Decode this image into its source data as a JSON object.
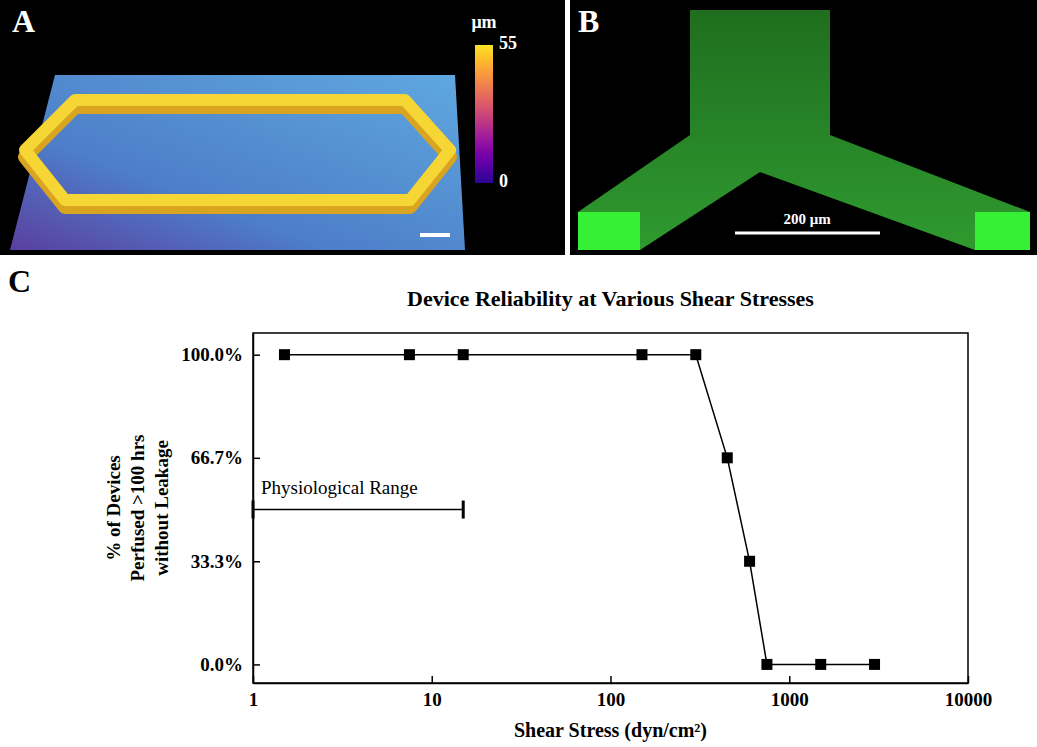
{
  "figure": {
    "panel_labels": [
      "A",
      "B",
      "C"
    ],
    "panel_a": {
      "colorbar": {
        "label": "μm",
        "range": [
          0,
          55
        ],
        "ticks": [
          0,
          55
        ]
      }
    },
    "panel_b": {
      "scale_bar_label": "200 μm"
    }
  },
  "chart_data": {
    "type": "line",
    "title": "Device Reliability at Various Shear Stresses",
    "x_label": "Shear Stress (dyn/cm²)",
    "y_label": "% of Devices Perfused >100 hrs without Leakage",
    "x": [
      1.5,
      7.5,
      15,
      150,
      300,
      450,
      600,
      750,
      1500,
      3000
    ],
    "values": [
      100,
      100,
      100,
      100,
      100,
      66.7,
      33.3,
      0,
      0,
      0
    ],
    "color": "#000000",
    "marker": "square",
    "line_style": "solid",
    "log": "x",
    "grid": false,
    "xlim": [
      1,
      10000
    ],
    "xticks": [
      1,
      10,
      100,
      1000,
      10000
    ],
    "ylim": [
      -6,
      107
    ],
    "yticks": [
      {
        "value": 0,
        "label": "0.0%"
      },
      {
        "value": 33.3,
        "label": "33.3%"
      },
      {
        "value": 66.7,
        "label": "66.7%"
      },
      {
        "value": 100,
        "label": "100.0%"
      }
    ],
    "annotations": [
      {
        "text": "Physiological Range",
        "x": [
          1,
          15
        ],
        "y": 50
      }
    ]
  }
}
